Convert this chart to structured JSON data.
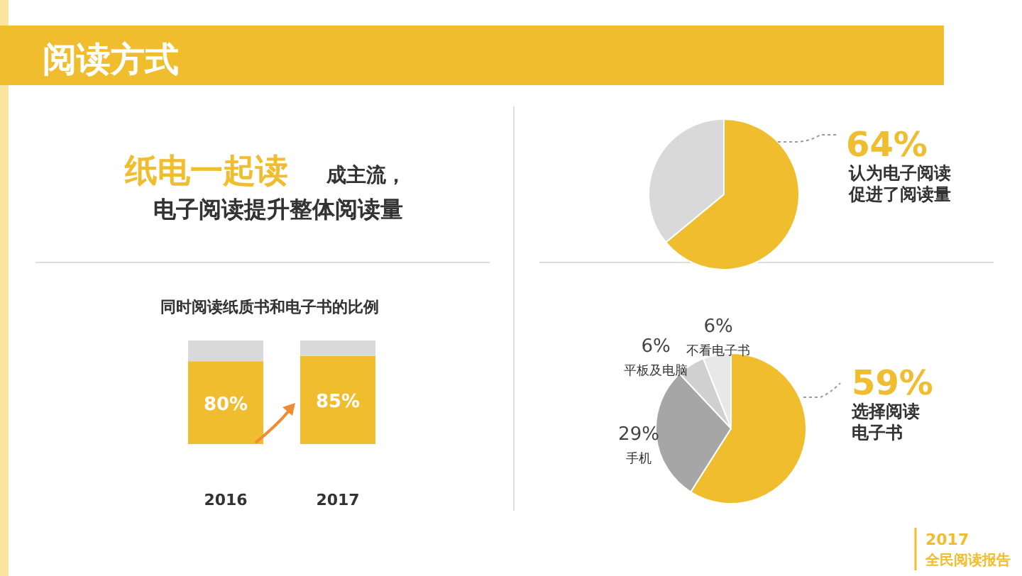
{
  "chart_data": [
    {
      "type": "other",
      "title": "阅读方式",
      "annotations": [
        "纸电一起读",
        "成主流，",
        "电子阅读提升整体阅读量",
        "2017",
        "全民阅读报告"
      ]
    },
    {
      "type": "pie",
      "categories": [
        "认为电子阅读促进了阅读量",
        null
      ],
      "values": [
        64,
        36
      ],
      "colors": [
        "#f0bd2f",
        "#d9d9d9"
      ],
      "value_labels": [
        "64%",
        null
      ]
    },
    {
      "type": "bar",
      "title": "同时阅读纸质书和电子书的比例",
      "stacked": true,
      "categories": [
        "2016",
        "2017"
      ],
      "series": [
        {
          "color": "#f0bd2f",
          "values": [
            80,
            85
          ],
          "value_labels": [
            "80%",
            "85%"
          ]
        },
        {
          "color": "#d9d9d9",
          "values": [
            20,
            15
          ]
        }
      ]
    },
    {
      "type": "pie",
      "categories": [
        "选择阅读电子书",
        "手机",
        "平板及电脑",
        "不看电子书"
      ],
      "values": [
        59,
        29,
        6,
        6
      ],
      "colors": [
        "#f0bd2f",
        "#a6a6a6",
        "#d0d0d0",
        "#e8e8e8"
      ],
      "value_labels": [
        "59%",
        "29%",
        "6%",
        "6%"
      ]
    }
  ]
}
